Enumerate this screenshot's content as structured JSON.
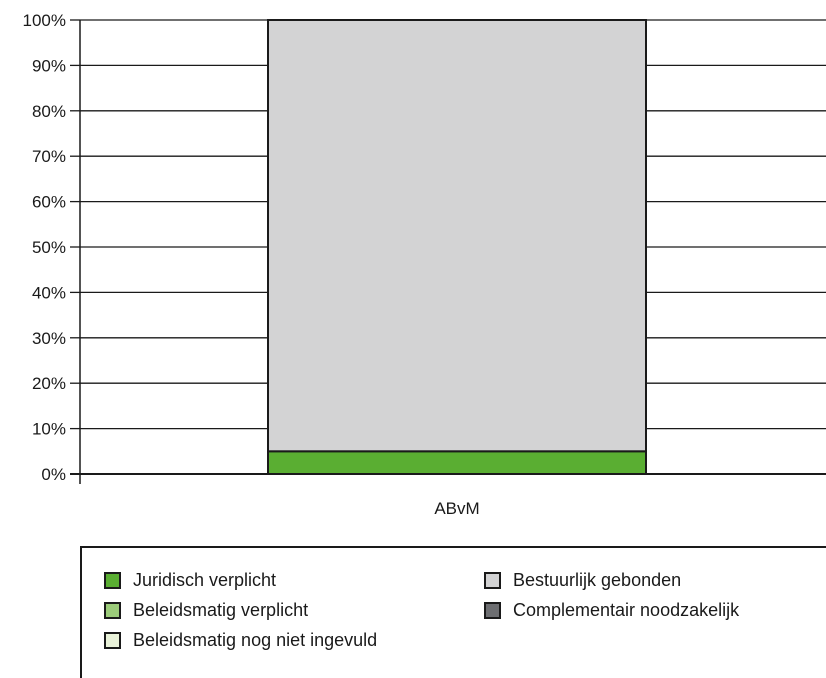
{
  "chart_data": {
    "type": "bar",
    "stacked": true,
    "categories": [
      "ABvM"
    ],
    "y_tick_labels": [
      "0%",
      "10%",
      "20%",
      "30%",
      "40%",
      "50%",
      "60%",
      "70%",
      "80%",
      "90%",
      "100%"
    ],
    "ylim": [
      0,
      100
    ],
    "grid": true,
    "legend_position": "bottom",
    "series": [
      {
        "name": "Juridisch verplicht",
        "values": [
          5
        ],
        "color": "#5aae32"
      },
      {
        "name": "Bestuurlijk gebonden",
        "values": [
          95
        ],
        "color": "#d3d3d4"
      },
      {
        "name": "Beleidsmatig verplicht",
        "values": [
          0
        ],
        "color": "#9ccc7a"
      },
      {
        "name": "Complementair noodzakelijk",
        "values": [
          0
        ],
        "color": "#6d6e71"
      },
      {
        "name": "Beleidsmatig nog niet ingevuld",
        "values": [
          0
        ],
        "color": "#e9f2d9"
      }
    ]
  }
}
